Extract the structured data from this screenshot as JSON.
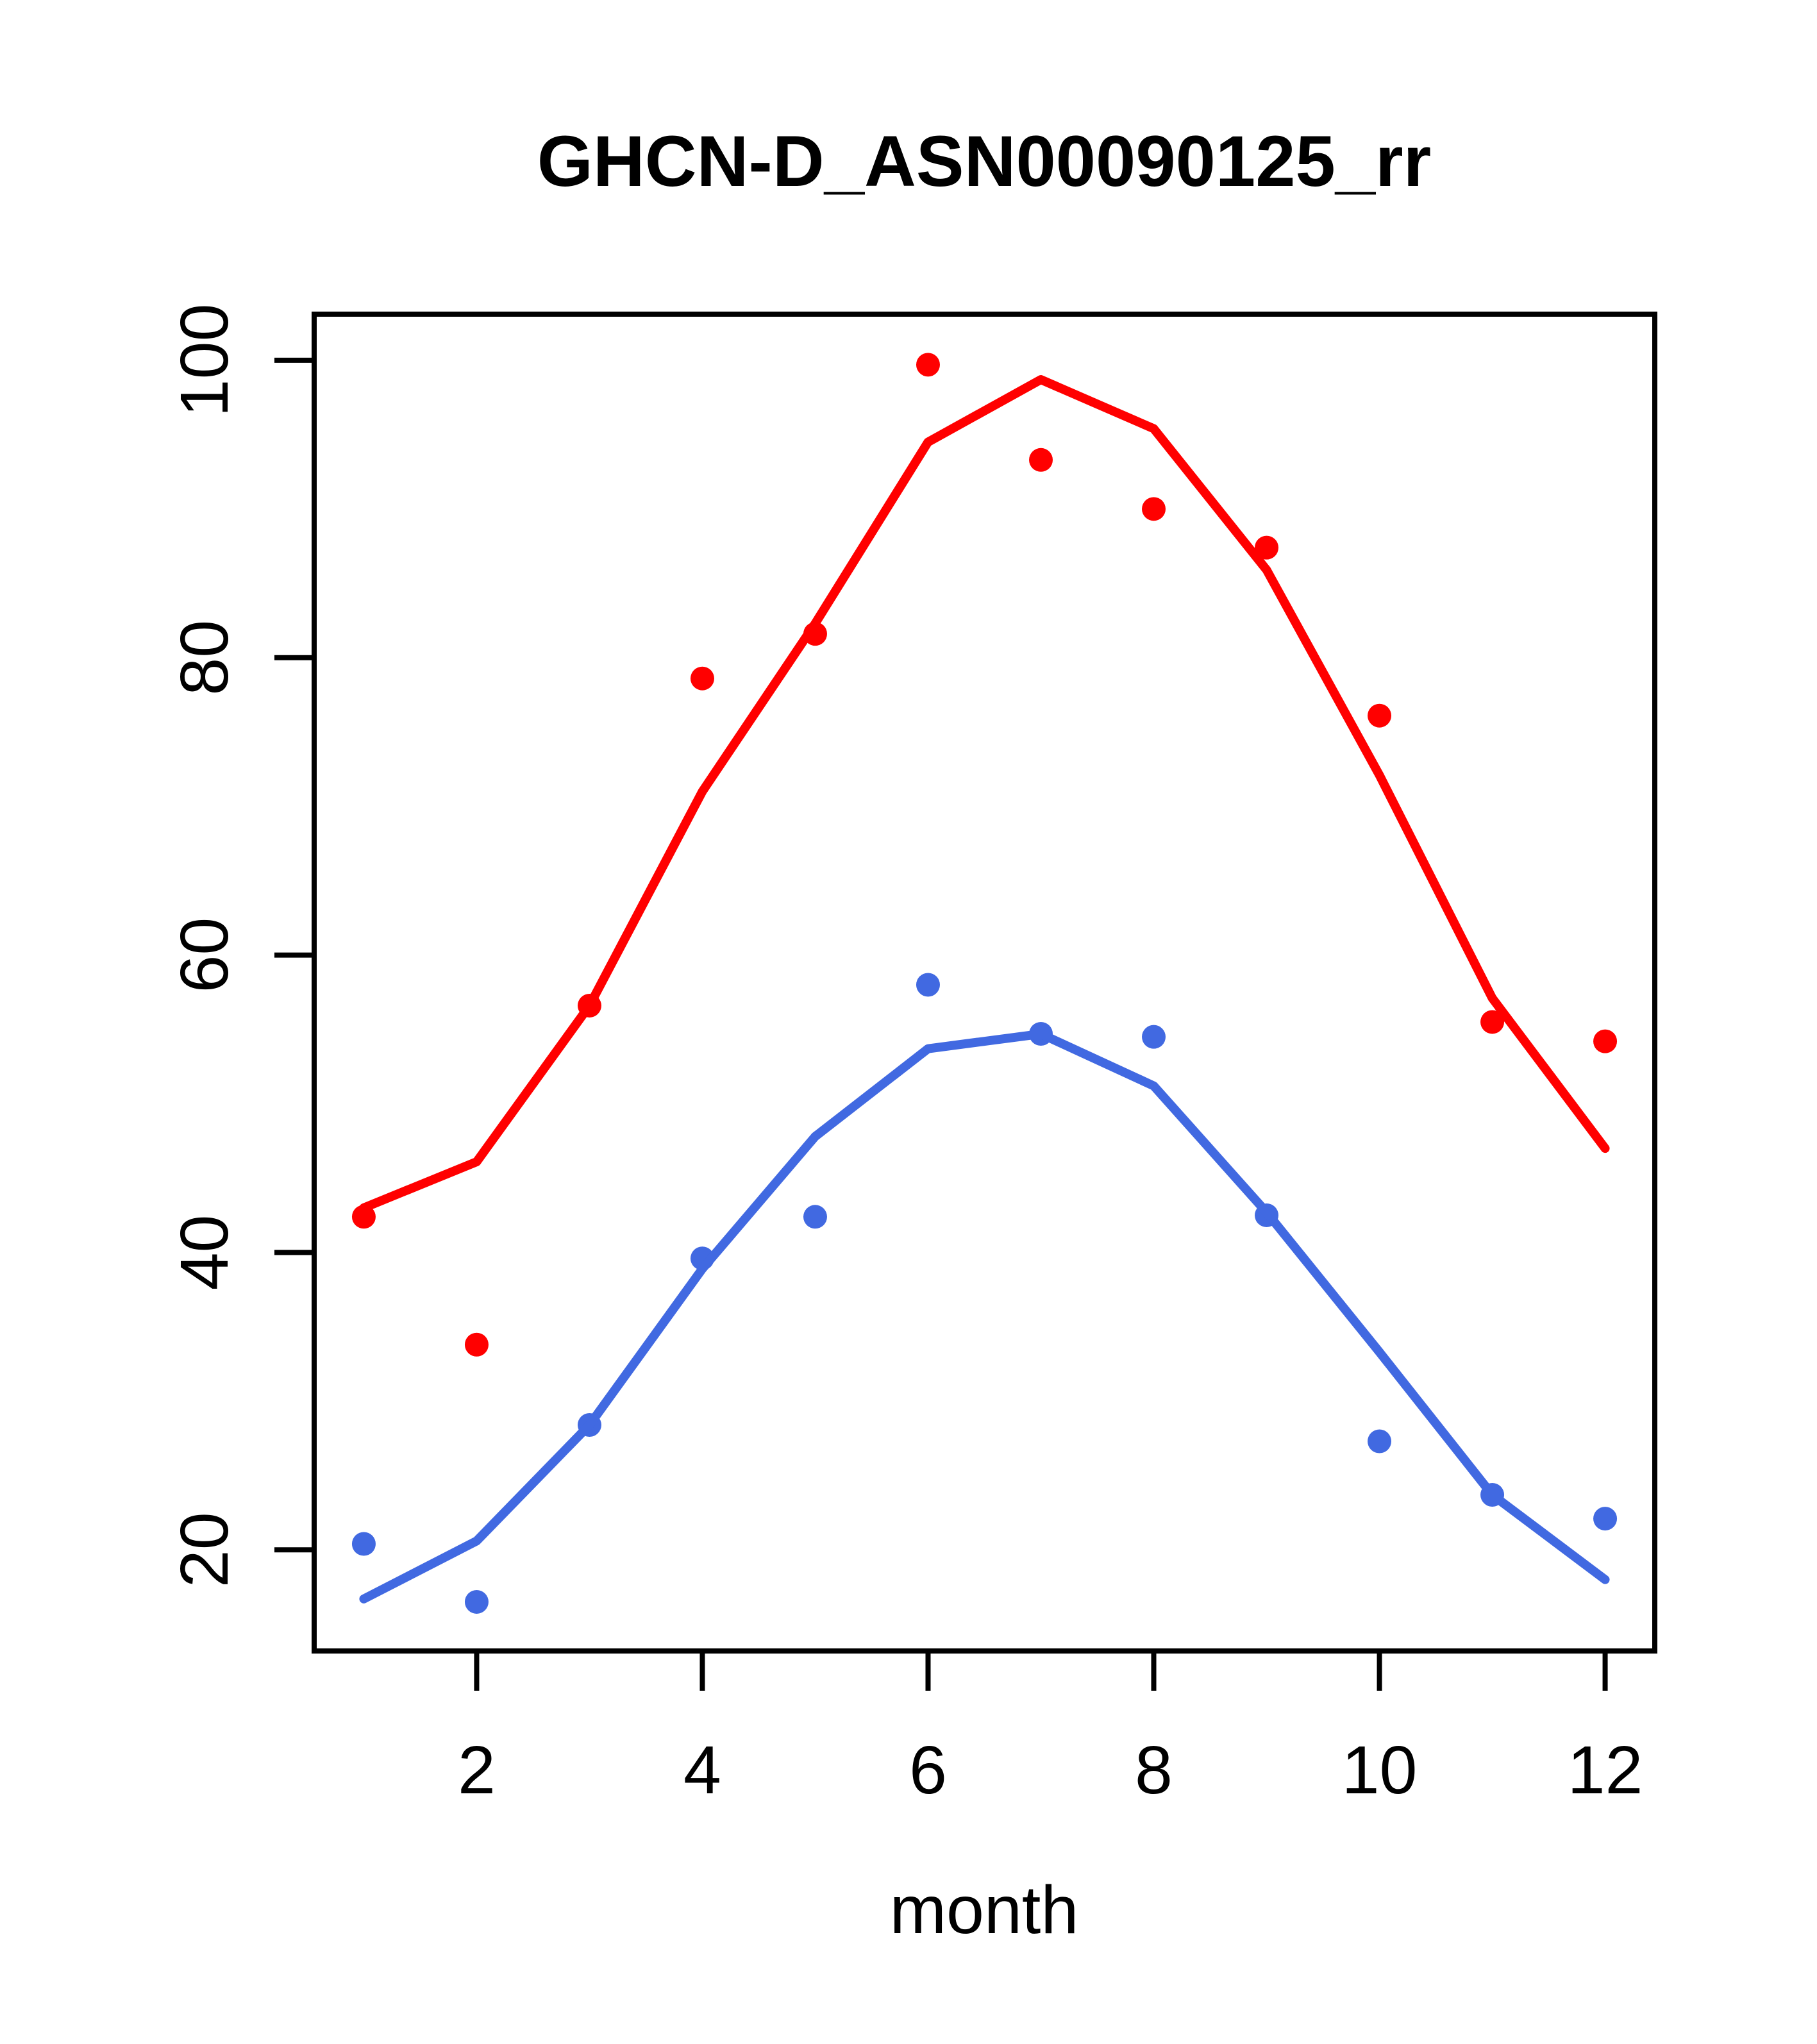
{
  "title": "GHCN-D_ASN00090125_rr",
  "chart_data": {
    "type": "line",
    "title": "GHCN-D_ASN00090125_rr",
    "xlabel": "month",
    "ylabel": "",
    "x": [
      1,
      2,
      3,
      4,
      5,
      6,
      7,
      8,
      9,
      10,
      11,
      12
    ],
    "xticks": [
      2,
      4,
      6,
      8,
      10,
      12
    ],
    "yticks": [
      20,
      40,
      60,
      80,
      100
    ],
    "xlim": [
      0.56,
      12.44
    ],
    "ylim": [
      13.2,
      103.1
    ],
    "grid": false,
    "legend": "none",
    "series": [
      {
        "name": "red-monthly-points",
        "style": "points",
        "color": "#FF0000",
        "values": [
          42.4,
          33.8,
          56.6,
          78.6,
          81.6,
          99.7,
          93.3,
          90.0,
          87.4,
          76.1,
          55.5,
          54.2
        ]
      },
      {
        "name": "red-smoothed-line",
        "style": "line",
        "color": "#FF0000",
        "values": [
          43.0,
          46.1,
          56.6,
          71.0,
          82.3,
          94.5,
          98.7,
          95.4,
          85.9,
          72.1,
          57.1,
          47.0
        ]
      },
      {
        "name": "blue-monthly-points",
        "style": "points",
        "color": "#4169E1",
        "values": [
          20.4,
          16.5,
          28.4,
          39.6,
          42.4,
          58.0,
          54.7,
          54.5,
          42.5,
          27.3,
          23.7,
          22.1
        ]
      },
      {
        "name": "blue-smoothed-line",
        "style": "line",
        "color": "#4169E1",
        "values": [
          16.7,
          20.6,
          28.4,
          38.9,
          47.8,
          53.7,
          54.7,
          51.2,
          42.7,
          33.3,
          23.7,
          18.0
        ]
      }
    ]
  },
  "colors": {
    "red": "#FF0000",
    "blue": "#4169E1",
    "axis": "#000000",
    "background": "#FFFFFF"
  }
}
